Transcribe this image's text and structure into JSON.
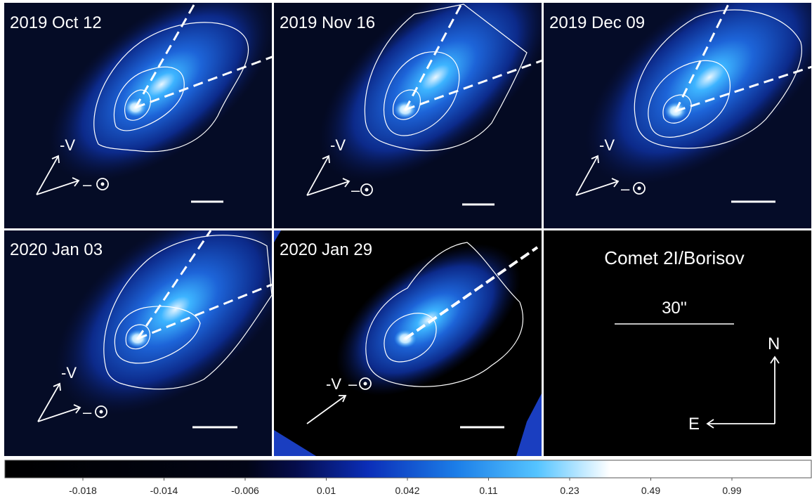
{
  "panels": [
    {
      "date": "2019 Oct 12"
    },
    {
      "date": "2019 Nov 16"
    },
    {
      "date": "2019 Dec 09"
    },
    {
      "date": "2020 Jan 03"
    },
    {
      "date": "2020 Jan 29"
    }
  ],
  "velocity_label": "-V",
  "sun_label_prefix": "–",
  "info_panel": {
    "title": "Comet 2I/Borisov",
    "scale_label": "30''",
    "north_label": "N",
    "east_label": "E"
  },
  "colorbar": {
    "ticks": [
      "-0.018",
      "-0.014",
      "-0.006",
      "0.01",
      "0.042",
      "0.11",
      "0.23",
      "0.49",
      "0.99"
    ],
    "colors": [
      "#000000",
      "#050a3a",
      "#0b2ec0",
      "#1f8ef0",
      "#ffffff"
    ]
  }
}
